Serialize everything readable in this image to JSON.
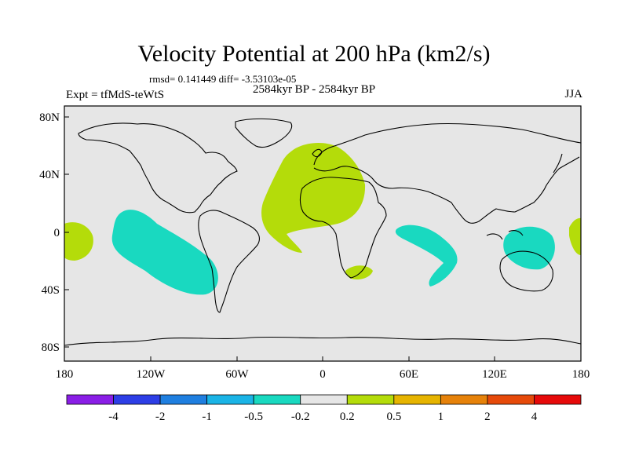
{
  "title": "Velocity Potential at 200 hPa (km2/s)",
  "stats": "rmsd= 0.141449 diff= -3.53103e-05",
  "subtitle": "2584kyr BP - 2584kyr BP",
  "experiment": "Expt = tfMdS-teWtS",
  "season": "JJA",
  "lat_labels": [
    "80N",
    "40N",
    "0",
    "40S",
    "80S"
  ],
  "lon_labels": [
    "180",
    "120W",
    "60W",
    "0",
    "60E",
    "120E",
    "180"
  ],
  "colorbar": {
    "labels": [
      "-4",
      "-2",
      "-1",
      "-0.5",
      "-0.2",
      "0.2",
      "0.5",
      "1",
      "2",
      "4"
    ],
    "colors": [
      "#8a1ee6",
      "#2d3ee6",
      "#1f7fe0",
      "#1ab4e6",
      "#19d9c0",
      "#e6e6e6",
      "#b4dc0a",
      "#e6b400",
      "#e6820a",
      "#e64a0a",
      "#e60a0a"
    ]
  },
  "map": {
    "background": "#e6e6e6",
    "anomaly_colors": {
      "negative": "#19d9c0",
      "positive": "#b4dc0a"
    }
  }
}
